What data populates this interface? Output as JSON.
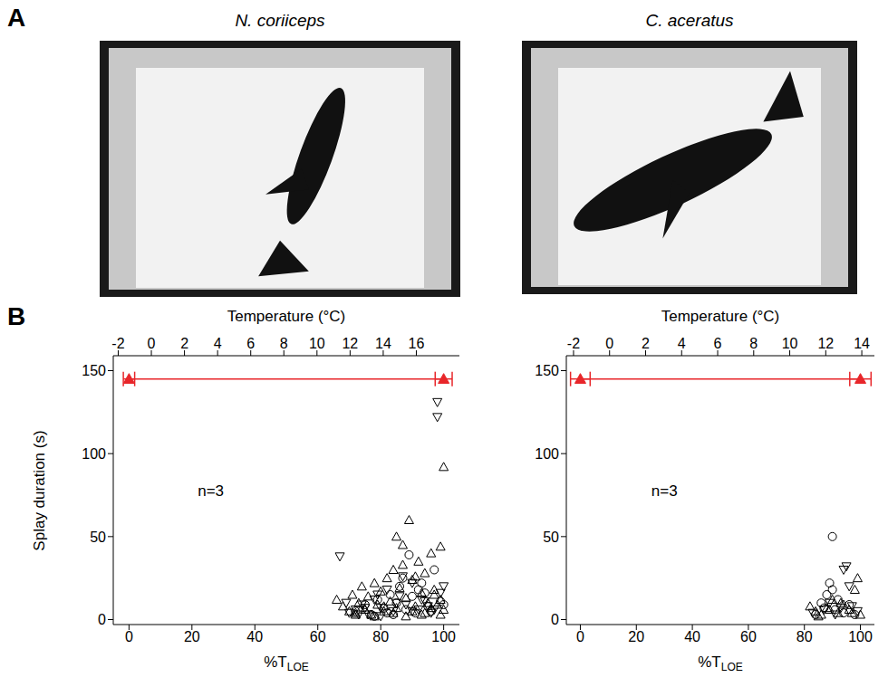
{
  "panel_labels": [
    "A",
    "B"
  ],
  "chart_data": [
    {
      "type": "scatter",
      "title": "N. coriiceps",
      "x2label": "Temperature (°C)",
      "x2lim": [
        -2.3,
        18.6
      ],
      "x2ticks": [
        -2,
        0,
        2,
        4,
        6,
        8,
        10,
        12,
        14,
        16
      ],
      "xlabel": {
        "text": "%T",
        "subscript": "LOE"
      },
      "xlim": [
        -5,
        105
      ],
      "xticks": [
        0,
        20,
        40,
        60,
        80,
        100
      ],
      "ylabel": "Splay duration (s)",
      "ylim": [
        -3,
        159
      ],
      "yticks": [
        0,
        50,
        100,
        150
      ],
      "annotations": [
        {
          "text": "n=3",
          "x": 26,
          "y": 78
        }
      ],
      "series": [
        {
          "type": "scatter",
          "marker": "open-triangle",
          "color": "#000000",
          "x": [
            66,
            68,
            70,
            71,
            72,
            73,
            74,
            75,
            76,
            77,
            78,
            79,
            80,
            81,
            82,
            83,
            84,
            85,
            86,
            87,
            88,
            89,
            90,
            91,
            92,
            93,
            94,
            95,
            96,
            97,
            98,
            99,
            100,
            72,
            75,
            78,
            81,
            84,
            87,
            90,
            93,
            96,
            99,
            85,
            88,
            91,
            94,
            97,
            100,
            99
          ],
          "values": [
            12,
            8,
            5,
            15,
            4,
            10,
            20,
            6,
            14,
            3,
            22,
            9,
            17,
            5,
            25,
            11,
            30,
            7,
            19,
            45,
            13,
            60,
            24,
            8,
            35,
            16,
            28,
            10,
            40,
            18,
            9,
            44,
            92,
            3,
            6,
            2,
            8,
            4,
            33,
            5,
            3,
            7,
            12,
            50,
            2,
            26,
            4,
            15,
            6,
            3
          ]
        },
        {
          "type": "scatter",
          "marker": "open-triangle-down",
          "color": "#000000",
          "x": [
            67,
            69,
            72,
            74,
            76,
            78,
            80,
            82,
            84,
            86,
            88,
            90,
            92,
            94,
            96,
            98,
            98,
            99,
            70,
            75,
            80,
            85,
            90,
            95,
            100,
            73,
            79,
            87,
            93,
            97
          ],
          "values": [
            38,
            10,
            6,
            9,
            3,
            12,
            7,
            18,
            5,
            14,
            9,
            22,
            6,
            11,
            4,
            131,
            122,
            16,
            4,
            7,
            2,
            10,
            5,
            8,
            20,
            3,
            15,
            26,
            12,
            6
          ]
        },
        {
          "type": "scatter",
          "marker": "open-circle",
          "color": "#000000",
          "x": [
            72,
            75,
            77,
            79,
            81,
            83,
            85,
            86,
            88,
            89,
            90,
            91,
            93,
            95,
            97,
            99,
            78,
            82,
            87,
            92,
            96,
            100,
            84,
            94
          ],
          "values": [
            5,
            9,
            3,
            12,
            7,
            15,
            10,
            20,
            6,
            39,
            14,
            4,
            22,
            8,
            30,
            11,
            2,
            4,
            25,
            18,
            5,
            9,
            3,
            16
          ]
        },
        {
          "type": "line",
          "marker": "filled-triangle",
          "color": "#e8262a",
          "x": [
            0,
            100
          ],
          "values": [
            145,
            145
          ],
          "xerr": [
            1.8,
            2.7
          ]
        }
      ]
    },
    {
      "type": "scatter",
      "title": "C. aceratus",
      "x2label": "Temperature (°C)",
      "x2lim": [
        -2.4,
        14.7
      ],
      "x2ticks": [
        -2,
        0,
        2,
        4,
        6,
        8,
        10,
        12,
        14
      ],
      "xlabel": {
        "text": "%T",
        "subscript": "LOE"
      },
      "xlim": [
        -5,
        105
      ],
      "xticks": [
        0,
        20,
        40,
        60,
        80,
        100
      ],
      "ylim": [
        -3,
        159
      ],
      "yticks": [
        0,
        50,
        100,
        150
      ],
      "annotations": [
        {
          "text": "n=3",
          "x": 30,
          "y": 78
        }
      ],
      "series": [
        {
          "type": "scatter",
          "marker": "open-triangle",
          "color": "#000000",
          "x": [
            82,
            84,
            86,
            88,
            90,
            92,
            94,
            96,
            98,
            100,
            85,
            89,
            93,
            97,
            99
          ],
          "values": [
            8,
            5,
            3,
            7,
            12,
            4,
            9,
            6,
            18,
            3,
            2,
            6,
            10,
            4,
            25
          ]
        },
        {
          "type": "scatter",
          "marker": "open-triangle-down",
          "color": "#000000",
          "x": [
            83,
            87,
            91,
            94,
            95,
            96,
            97,
            99,
            89,
            93
          ],
          "values": [
            4,
            6,
            3,
            30,
            32,
            20,
            8,
            5,
            10,
            7
          ]
        },
        {
          "type": "scatter",
          "marker": "open-circle",
          "color": "#000000",
          "x": [
            84,
            86,
            88,
            89,
            90,
            90,
            91,
            92,
            94,
            96,
            98,
            87
          ],
          "values": [
            3,
            10,
            15,
            22,
            50,
            18,
            6,
            12,
            4,
            9,
            3,
            7
          ]
        },
        {
          "type": "line",
          "marker": "filled-triangle",
          "color": "#e8262a",
          "x": [
            0,
            100
          ],
          "values": [
            145,
            145
          ],
          "xerr": [
            3.5,
            3.8
          ]
        }
      ]
    }
  ]
}
